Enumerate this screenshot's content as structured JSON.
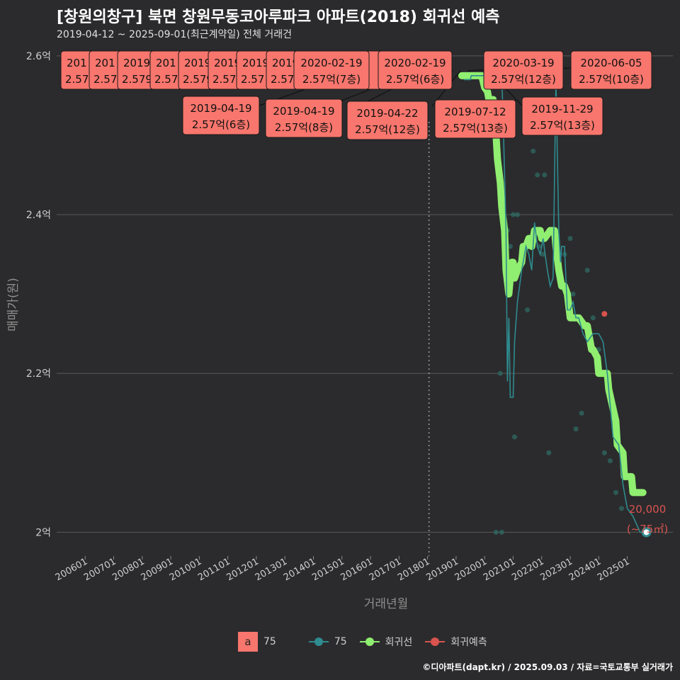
{
  "header": {
    "title": "[창원의창구] 북면 창원무동코아루파크 아파트(2018) 회귀선 예측",
    "subtitle": "2019-04-12 ~ 2025-09-01(최근계약일) 전체 거래건"
  },
  "caption": "©디아파트(dapt.kr) / 2025.09.03 / 자료=국토교통부 실거래가",
  "legend": {
    "label_key": "a",
    "label_text": "75",
    "series_75": "75",
    "series_regression": "회귀선",
    "series_prediction": "회귀예측"
  },
  "colors": {
    "background": "#2b2b2d",
    "grid": "#5a5a5a",
    "series_75": "#2e8b8f",
    "regression": "#90ee70",
    "prediction": "#d9534f",
    "label_box": "#f8766d"
  },
  "chart_data": {
    "type": "line",
    "xlabel": "거래년월",
    "ylabel": "매매가(원)",
    "xlim": [
      2005.0,
      2026.6
    ],
    "ylim": [
      1.97,
      2.615
    ],
    "x_ticks": [
      "200601",
      "200701",
      "200801",
      "200901",
      "201001",
      "201101",
      "201201",
      "201301",
      "201401",
      "201501",
      "201601",
      "201701",
      "201801",
      "201901",
      "202001",
      "202101",
      "202201",
      "202301",
      "202401",
      "202501"
    ],
    "x_tick_values": [
      2006,
      2007,
      2008,
      2009,
      2010,
      2011,
      2012,
      2013,
      2014,
      2015,
      2016,
      2017,
      2018,
      2019,
      2020,
      2021,
      2022,
      2023,
      2024,
      2025
    ],
    "y_ticks": [
      "2억",
      "2.2억",
      "2.4억",
      "2.6억"
    ],
    "y_tick_values": [
      2.0,
      2.2,
      2.4,
      2.6
    ],
    "reference_line_x": 2018.05,
    "series": [
      {
        "name": "75",
        "x": [
          2019.28,
          2019.5,
          2019.53,
          2019.9,
          2020.1,
          2020.14,
          2020.22,
          2020.3,
          2020.42,
          2020.5,
          2020.6,
          2020.65,
          2020.7,
          2020.75,
          2020.8,
          2020.85,
          2020.9,
          2021.0,
          2021.05,
          2021.15,
          2021.3,
          2021.45,
          2021.55,
          2021.65,
          2021.75,
          2021.85,
          2021.95,
          2022.05,
          2022.12,
          2022.2,
          2022.3,
          2022.4,
          2022.5,
          2022.6,
          2022.66,
          2022.7,
          2022.8,
          2022.9,
          2023.0,
          2023.1,
          2023.2,
          2023.3,
          2023.45,
          2023.6,
          2023.8,
          2024.0,
          2024.15,
          2024.3,
          2024.5,
          2024.7,
          2024.85,
          2025.0,
          2025.2,
          2025.45,
          2025.67
        ],
        "values": [
          2.57,
          2.57,
          2.575,
          2.575,
          2.575,
          2.57,
          2.575,
          2.57,
          2.575,
          2.57,
          2.575,
          2.52,
          2.45,
          2.38,
          2.19,
          2.27,
          2.17,
          2.17,
          2.24,
          2.29,
          2.33,
          2.36,
          2.35,
          2.33,
          2.39,
          2.36,
          2.35,
          2.37,
          2.35,
          2.33,
          2.31,
          2.32,
          2.57,
          2.38,
          2.34,
          2.36,
          2.36,
          2.28,
          2.28,
          2.29,
          2.27,
          2.27,
          2.25,
          2.24,
          2.25,
          2.25,
          2.24,
          2.2,
          2.12,
          2.11,
          2.06,
          2.03,
          2.02,
          2.0,
          2.0
        ]
      },
      {
        "name": "회귀선",
        "x": [
          2019.2,
          2019.6,
          2019.9,
          2020.0,
          2020.1,
          2020.15,
          2020.3,
          2020.4,
          2020.45,
          2020.55,
          2020.6,
          2020.7,
          2020.75,
          2020.85,
          2020.95,
          2021.0,
          2021.05,
          2021.15,
          2021.3,
          2021.35,
          2021.45,
          2021.55,
          2021.6,
          2021.65,
          2021.75,
          2021.85,
          2021.95,
          2022.0,
          2022.1,
          2022.3,
          2022.45,
          2022.5,
          2022.6,
          2022.7,
          2022.8,
          2022.9,
          2023.0,
          2023.1,
          2023.2,
          2023.3,
          2023.5,
          2023.6,
          2023.75,
          2023.8,
          2023.95,
          2024.0,
          2024.1,
          2024.3,
          2024.35,
          2024.6,
          2024.65,
          2024.85,
          2024.9,
          2025.15,
          2025.2,
          2025.45,
          2025.55
        ],
        "values": [
          2.575,
          2.575,
          2.575,
          2.56,
          2.555,
          2.545,
          2.545,
          2.5,
          2.47,
          2.44,
          2.41,
          2.38,
          2.33,
          2.3,
          2.34,
          2.34,
          2.32,
          2.33,
          2.34,
          2.36,
          2.36,
          2.37,
          2.37,
          2.36,
          2.38,
          2.38,
          2.38,
          2.37,
          2.37,
          2.38,
          2.38,
          2.36,
          2.33,
          2.31,
          2.31,
          2.3,
          2.27,
          2.27,
          2.27,
          2.27,
          2.26,
          2.26,
          2.23,
          2.23,
          2.22,
          2.2,
          2.2,
          2.2,
          2.18,
          2.14,
          2.11,
          2.1,
          2.07,
          2.07,
          2.05,
          2.05,
          2.05
        ]
      },
      {
        "name": "회귀예측",
        "x": [
          2024.2
        ],
        "values": [
          2.275
        ]
      }
    ],
    "scatter_points": {
      "x": [
        2020.4,
        2020.6,
        2020.9,
        2021.0,
        2021.05,
        2021.5,
        2021.7,
        2021.85,
        2022.1,
        2022.25,
        2022.3,
        2022.55,
        2022.8,
        2023.0,
        2023.2,
        2023.4,
        2023.6,
        2023.8,
        2024.0,
        2024.2,
        2024.4,
        2024.6,
        2024.8,
        2020.55,
        2020.8,
        2021.15,
        2021.9,
        2022.05,
        2023.1
      ],
      "values": [
        2.0,
        2.0,
        2.36,
        2.4,
        2.12,
        2.28,
        2.48,
        2.45,
        2.45,
        2.1,
        2.38,
        2.36,
        2.35,
        2.37,
        2.13,
        2.15,
        2.33,
        2.27,
        2.23,
        2.1,
        2.09,
        2.05,
        2.03,
        2.2,
        2.38,
        2.4,
        2.36,
        2.35,
        2.3
      ]
    },
    "last_point": {
      "x": 2025.67,
      "value": 2.0,
      "label_price": "20,000",
      "label_area": "(~75㎡)"
    },
    "annotations": [
      {
        "date": "2019-04-19",
        "price": "2.57억(6층)",
        "point_x": 2019.3,
        "point_y": 2.575
      },
      {
        "date": "2019-04-19",
        "price": "2.57억(8층)",
        "point_x": 2019.3,
        "point_y": 2.575
      },
      {
        "date": "2019-04-22",
        "price": "2.57억(12층)",
        "point_x": 2019.3,
        "point_y": 2.575
      },
      {
        "date": "2019-07-12",
        "price": "2.57억(13층)",
        "point_x": 2019.53,
        "point_y": 2.575
      },
      {
        "date": "2019-11-29",
        "price": "2.57억(13층)",
        "point_x": 2019.91,
        "point_y": 2.575
      },
      {
        "date": "2020-02-19",
        "price": "2.57억(7층)",
        "point_x": 2020.13,
        "point_y": 2.575
      },
      {
        "date": "2020-02-19",
        "price": "2.57억(6층)",
        "point_x": 2020.13,
        "point_y": 2.575
      },
      {
        "date": "2020-03-19",
        "price": "2.57억(12층)",
        "point_x": 2020.21,
        "point_y": 2.575
      },
      {
        "date": "2020-06-05",
        "price": "2.57억(10층)",
        "point_x": 2020.43,
        "point_y": 2.575
      }
    ],
    "truncated_annotations": [
      {
        "date": "201",
        "price": "2.57"
      },
      {
        "date": "201",
        "price": "2.57"
      },
      {
        "date": "2019",
        "price": "2.579"
      },
      {
        "date": "201",
        "price": "2.57"
      },
      {
        "date": "2019",
        "price": "2.579"
      },
      {
        "date": "2019",
        "price": "2.57"
      },
      {
        "date": "2019",
        "price": "2.57"
      },
      {
        "date": "2019",
        "price": "2.57"
      },
      {
        "date": "2",
        "price": "5"
      }
    ]
  }
}
